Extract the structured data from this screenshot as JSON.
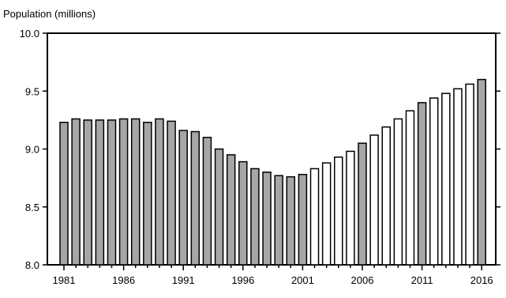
{
  "chart_data": {
    "type": "bar",
    "ylabel": "Population (millions)",
    "xlabel": "",
    "ylim": [
      8.0,
      10.0
    ],
    "y_ticks": [
      "8.0",
      "8.5",
      "9.0",
      "9.5",
      "10.0"
    ],
    "x_ticks": [
      "1981",
      "1986",
      "1991",
      "1996",
      "2001",
      "2006",
      "2011",
      "2016"
    ],
    "grid": false,
    "legend": "none",
    "colors": {
      "filled": "#a6a6a6",
      "hollow": "#ffffff",
      "stroke": "#000000"
    },
    "categories": [
      1981,
      1982,
      1983,
      1984,
      1985,
      1986,
      1987,
      1988,
      1989,
      1990,
      1991,
      1992,
      1993,
      1994,
      1995,
      1996,
      1997,
      1998,
      1999,
      2000,
      2001,
      2002,
      2003,
      2004,
      2005,
      2006,
      2007,
      2008,
      2009,
      2010,
      2011,
      2012,
      2013,
      2014,
      2015,
      2016
    ],
    "values": [
      9.23,
      9.26,
      9.25,
      9.25,
      9.25,
      9.26,
      9.26,
      9.23,
      9.26,
      9.24,
      9.16,
      9.15,
      9.1,
      9.0,
      8.95,
      8.89,
      8.83,
      8.8,
      8.77,
      8.76,
      8.78,
      8.83,
      8.88,
      8.93,
      8.98,
      9.05,
      9.12,
      9.19,
      9.26,
      9.33,
      9.4,
      9.44,
      9.48,
      9.52,
      9.56,
      9.6
    ],
    "filled": [
      true,
      true,
      true,
      true,
      true,
      true,
      true,
      true,
      true,
      true,
      true,
      true,
      true,
      true,
      true,
      true,
      true,
      true,
      true,
      true,
      true,
      false,
      false,
      false,
      false,
      true,
      false,
      false,
      false,
      false,
      true,
      false,
      false,
      false,
      false,
      true
    ]
  }
}
